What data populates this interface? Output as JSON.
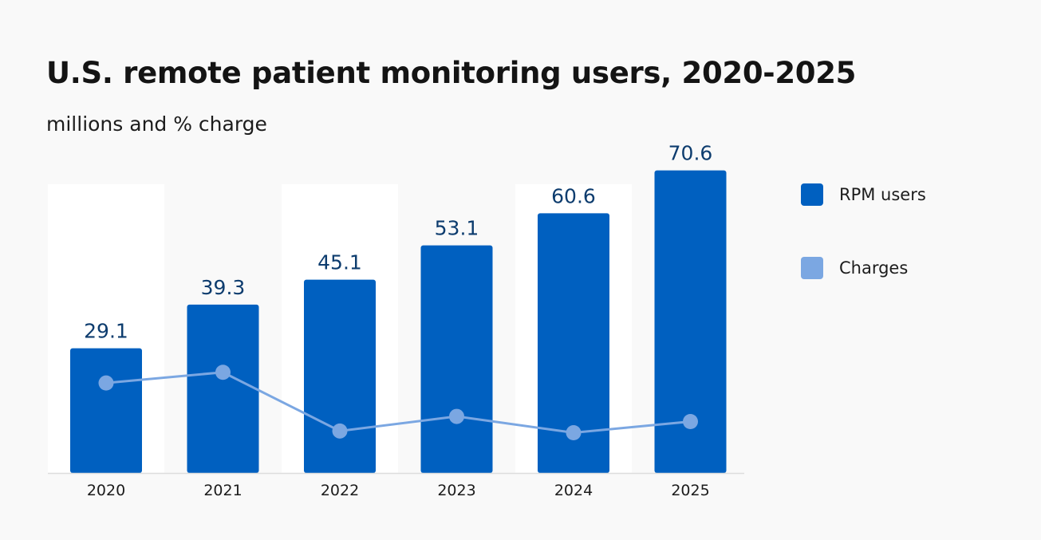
{
  "header": {
    "title": "U.S. remote patient monitoring users, 2020-2025",
    "subtitle": "millions and % charge"
  },
  "colors": {
    "bar": "#0060c0",
    "line": "#7ba7e2",
    "value_label": "#0d3c6e",
    "band": "#ffffff",
    "axis": "#dddddd"
  },
  "legend": {
    "items": [
      {
        "label": "RPM users",
        "color": "#0060c0"
      },
      {
        "label": "Charges",
        "color": "#7ba7e2"
      }
    ]
  },
  "chart_data": {
    "type": "bar",
    "title": "U.S. remote patient monitoring users, 2020-2025",
    "subtitle": "millions and % charge",
    "categories": [
      "2020",
      "2021",
      "2022",
      "2023",
      "2024",
      "2025"
    ],
    "series": [
      {
        "name": "RPM users",
        "type": "bar",
        "values": [
          29.1,
          39.3,
          45.1,
          53.1,
          60.6,
          70.6
        ]
      },
      {
        "name": "Charges",
        "type": "line",
        "values": [
          21.0,
          23.5,
          9.8,
          13.2,
          9.4,
          12.0
        ]
      }
    ],
    "ylim": [
      0,
      75
    ],
    "line_ylim": [
      0,
      75
    ],
    "legend_position": "right",
    "grid": false,
    "alternating_bands": true
  }
}
